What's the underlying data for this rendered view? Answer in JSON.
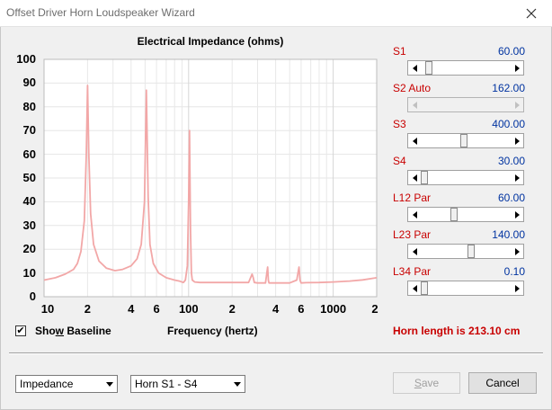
{
  "window": {
    "title": "Offset Driver Horn Loudspeaker Wizard"
  },
  "chart_data": {
    "type": "line",
    "title": "Electrical Impedance (ohms)",
    "xlabel": "Frequency (hertz)",
    "ylabel": "",
    "xscale": "log",
    "xlim": [
      10,
      2000
    ],
    "ylim": [
      0,
      100
    ],
    "y_ticks": [
      "100",
      "90",
      "80",
      "70",
      "60",
      "50",
      "40",
      "30",
      "20",
      "10",
      "0"
    ],
    "x_tick_labels": [
      "10",
      "2",
      "4",
      "6",
      "100",
      "2",
      "4",
      "6",
      "1000",
      "2"
    ],
    "grid": true,
    "color": "#f2a7a7",
    "series": [
      {
        "x": [
          10,
          12,
          14,
          16,
          17,
          18,
          19,
          19.6,
          20,
          20.4,
          21,
          22,
          24,
          27,
          31,
          35,
          40,
          44,
          47,
          49.5,
          51,
          52.5,
          54,
          57,
          62,
          70,
          80,
          87,
          92,
          95,
          98,
          100,
          101.5,
          103,
          104.5,
          106,
          110,
          120,
          150,
          200,
          260,
          275,
          280,
          285,
          300,
          340,
          352,
          356,
          360,
          380,
          500,
          560,
          580,
          590,
          600,
          650,
          800,
          1000,
          1300,
          1600,
          2000
        ],
        "y": [
          7,
          8,
          9.5,
          11.5,
          14,
          19,
          32,
          60,
          89,
          60,
          35,
          22,
          15,
          12,
          11,
          11.5,
          13,
          16,
          22,
          40,
          87,
          42,
          22,
          14,
          10,
          8,
          7,
          6.5,
          6,
          7,
          13,
          40,
          70,
          28,
          10,
          7,
          6.2,
          6,
          6,
          6,
          6,
          9.5,
          8,
          6,
          5.8,
          5.8,
          12.5,
          7,
          5.8,
          5.8,
          5.8,
          7,
          12.5,
          7,
          5.8,
          5.9,
          6,
          6.2,
          6.6,
          7.1,
          8
        ]
      }
    ]
  },
  "params": [
    {
      "label": "S1",
      "value": "60.00",
      "disabled": false,
      "level": 0.05
    },
    {
      "label": "S2  Auto",
      "value": "162.00",
      "disabled": true,
      "level": 0
    },
    {
      "label": "S3",
      "value": "400.00",
      "disabled": false,
      "level": 0.48
    },
    {
      "label": "S4",
      "value": "30.00",
      "disabled": false,
      "level": 0.0
    },
    {
      "label": "L12  Par",
      "value": "60.00",
      "disabled": false,
      "level": 0.36
    },
    {
      "label": "L23  Par",
      "value": "140.00",
      "disabled": false,
      "level": 0.56
    },
    {
      "label": "L34  Par",
      "value": "0.10",
      "disabled": false,
      "level": 0.0
    }
  ],
  "show_baseline": {
    "label_pre": "Sho",
    "label_u": "w",
    "label_post": " Baseline",
    "checked": true,
    "check_glyph": "✔"
  },
  "horn_length_text": "Horn length is 213.10 cm",
  "dropdowns": {
    "plot_type": "Impedance",
    "range": "Horn S1 - S4"
  },
  "buttons": {
    "save_pre": "",
    "save_u": "S",
    "save_post": "ave",
    "save_disabled": true,
    "cancel": "Cancel"
  },
  "colors": {
    "param_label": "#c80000",
    "param_value": "#0033a0",
    "curve": "#f2a7a7"
  }
}
